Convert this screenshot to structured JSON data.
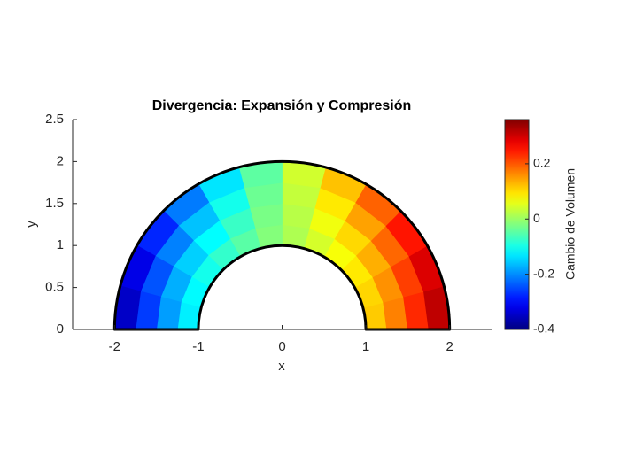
{
  "chart_data": {
    "type": "contour",
    "title": "Divergencia: Expansión y Compresión",
    "x_label": "x",
    "y_label": "y",
    "colorbar_label": "Cambio de Volumen",
    "xlim": [
      -2.5,
      2.5
    ],
    "ylim": [
      0,
      2.5
    ],
    "xticks": [
      -2,
      -1,
      0,
      1,
      2
    ],
    "yticks": [
      0,
      0.5,
      1,
      1.5,
      2,
      2.5
    ],
    "clim": [
      -0.4,
      0.36
    ],
    "cticks": [
      -0.4,
      -0.2,
      0,
      0.2
    ],
    "colormap": "jet",
    "radii": [
      1,
      1.25,
      1.5,
      1.75,
      2
    ],
    "angles": [
      0,
      15,
      30,
      45,
      60,
      75,
      90,
      105,
      120,
      135,
      150,
      165,
      180
    ],
    "z": [
      [
        0.09,
        0.087,
        0.078,
        0.064,
        0.045,
        0.023,
        0,
        -0.026,
        -0.05,
        -0.071,
        -0.087,
        -0.097,
        -0.1
      ],
      [
        0.141,
        0.136,
        0.122,
        0.099,
        0.07,
        0.036,
        0,
        -0.04,
        -0.078,
        -0.11,
        -0.135,
        -0.151,
        -0.156
      ],
      [
        0.203,
        0.196,
        0.175,
        0.143,
        0.101,
        0.052,
        0,
        -0.058,
        -0.113,
        -0.159,
        -0.195,
        -0.217,
        -0.225
      ],
      [
        0.276,
        0.266,
        0.239,
        0.195,
        0.138,
        0.071,
        0,
        -0.079,
        -0.153,
        -0.217,
        -0.265,
        -0.296,
        -0.306
      ],
      [
        0.36,
        0.348,
        0.312,
        0.255,
        0.18,
        0.093,
        0,
        -0.104,
        -0.2,
        -0.283,
        -0.346,
        -0.386,
        -0.4
      ]
    ]
  }
}
